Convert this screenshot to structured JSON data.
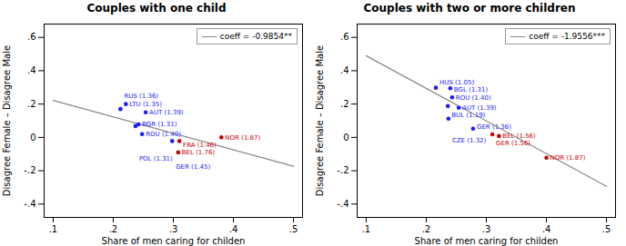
{
  "chart_data": [
    {
      "type": "scatter",
      "title": "Couples with one child",
      "xlabel": "Share of men caring for childen",
      "ylabel": "Disagree Female – Disagree Male",
      "xlim": [
        0.085,
        0.515
      ],
      "ylim": [
        -0.48,
        0.68
      ],
      "xticks": [
        {
          "value": 0.1,
          "label": ".1"
        },
        {
          "value": 0.2,
          "label": ".2"
        },
        {
          "value": 0.3,
          "label": ".3"
        },
        {
          "value": 0.4,
          "label": ".4"
        },
        {
          "value": 0.5,
          "label": ".5"
        }
      ],
      "yticks": [
        {
          "value": -0.4,
          "label": "-.4"
        },
        {
          "value": -0.2,
          "label": "-.2"
        },
        0,
        {
          "value": 0.2,
          "label": ".2"
        },
        {
          "value": 0.4,
          "label": ".4"
        },
        {
          "value": 0.6,
          "label": ".6"
        }
      ],
      "grid": false,
      "legend": "upper right",
      "series": [
        {
          "type": "line",
          "name": "coeff = -0.9854**",
          "color": "#888888",
          "x": [
            0.1,
            0.5
          ],
          "values": [
            0.222,
            -0.173
          ]
        },
        {
          "type": "scatter",
          "color": "#1a1aff",
          "x": [
            0.221,
            0.212,
            0.254,
            0.242,
            0.237,
            0.248,
            0.298
          ],
          "values": [
            0.2,
            0.17,
            0.15,
            0.078,
            0.068,
            0.02,
            -0.022
          ],
          "labels": [
            "LTU (1.35)",
            "RUS (1.36)",
            "AUT (1.39)",
            "BGR (1.31)",
            "POL (1.31)",
            "ROU (1.40)",
            "GER (1.45)"
          ]
        },
        {
          "type": "scatter",
          "color": "#cc0000",
          "x": [
            0.31,
            0.308,
            0.38
          ],
          "values": [
            -0.022,
            -0.09,
            0.0
          ],
          "labels": [
            "FRA (1.46)",
            "BEL (1.76)",
            "NOR (1.87)"
          ]
        }
      ]
    },
    {
      "type": "scatter",
      "title": "Couples with two or more children",
      "xlabel": "Share of men caring for childen",
      "ylabel": "Disagree Female – Disagree Male",
      "xlim": [
        0.085,
        0.515
      ],
      "ylim": [
        -0.48,
        0.68
      ],
      "xticks": [
        {
          "value": 0.1,
          "label": ".1"
        },
        {
          "value": 0.2,
          "label": ".2"
        },
        {
          "value": 0.3,
          "label": ".3"
        },
        {
          "value": 0.4,
          "label": ".4"
        },
        {
          "value": 0.5,
          "label": ".5"
        }
      ],
      "yticks": [
        {
          "value": -0.4,
          "label": "-.4"
        },
        {
          "value": -0.2,
          "label": "-.2"
        },
        0,
        {
          "value": 0.2,
          "label": ".2"
        },
        {
          "value": 0.4,
          "label": ".4"
        },
        {
          "value": 0.6,
          "label": ".6"
        }
      ],
      "grid": false,
      "legend": "upper right",
      "series": [
        {
          "type": "line",
          "name": "coeff = -1.9556***",
          "color": "#888888",
          "x": [
            0.1,
            0.5
          ],
          "values": [
            0.49,
            -0.294
          ]
        },
        {
          "type": "scatter",
          "color": "#1a1aff",
          "x": [
            0.216,
            0.24,
            0.243,
            0.236,
            0.254,
            0.237,
            0.278
          ],
          "values": [
            0.298,
            0.295,
            0.24,
            0.188,
            0.178,
            0.112,
            0.052
          ],
          "labels": [
            "HUS (1.05)",
            "BGL (1.31)",
            "ROU (1.40)",
            "BUL (1.19)",
            "AUT (1.39)",
            "CZE (1.32)",
            "GER (1.36)"
          ]
        },
        {
          "type": "scatter",
          "color": "#cc0000",
          "x": [
            0.31,
            0.321,
            0.4
          ],
          "values": [
            0.018,
            0.008,
            -0.122
          ],
          "labels": [
            "GER (1.56)",
            "BEL (1.56)",
            "NOR (1.87)"
          ]
        }
      ]
    }
  ]
}
